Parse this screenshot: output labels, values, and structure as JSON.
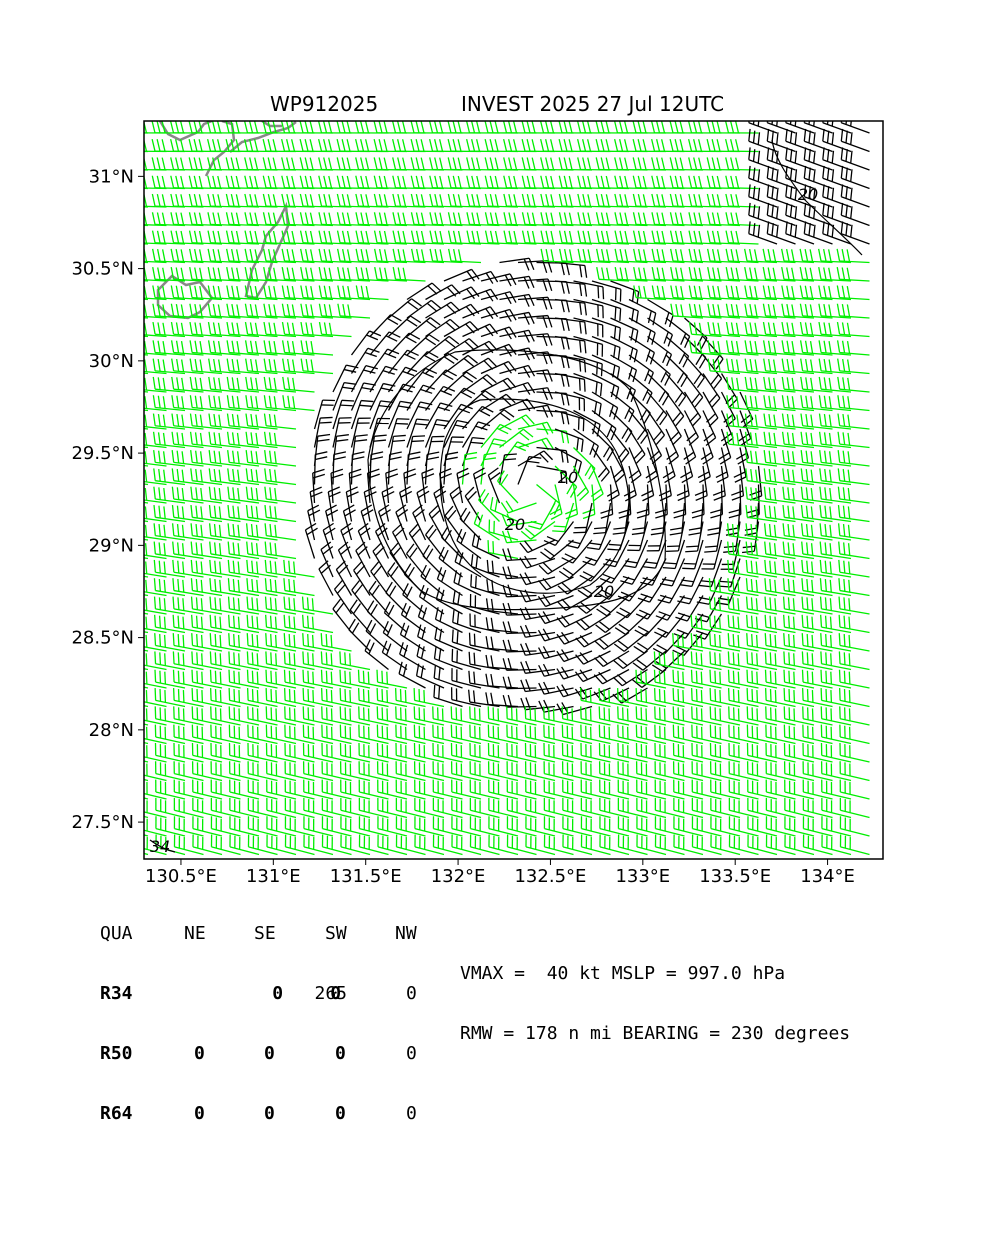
{
  "title": {
    "left": "WP912025",
    "right": "INVEST 2025 27 Jul 12UTC"
  },
  "map": {
    "lon_range": [
      130.3,
      134.3
    ],
    "lat_range": [
      27.3,
      31.3
    ],
    "lon_ticks": [
      {
        "value": 130.5,
        "label": "130.5°E"
      },
      {
        "value": 131.0,
        "label": "131°E"
      },
      {
        "value": 131.5,
        "label": "131.5°E"
      },
      {
        "value": 132.0,
        "label": "132°E"
      },
      {
        "value": 132.5,
        "label": "132.5°E"
      },
      {
        "value": 133.0,
        "label": "133°E"
      },
      {
        "value": 133.5,
        "label": "133.5°E"
      },
      {
        "value": 134.0,
        "label": "134°E"
      }
    ],
    "lat_ticks": [
      {
        "value": 31.0,
        "label": "31°N"
      },
      {
        "value": 30.5,
        "label": "30.5°N"
      },
      {
        "value": 30.0,
        "label": "30°N"
      },
      {
        "value": 29.5,
        "label": "29.5°N"
      },
      {
        "value": 29.0,
        "label": "29°N"
      },
      {
        "value": 28.5,
        "label": "28.5°N"
      },
      {
        "value": 28.0,
        "label": "28°N"
      },
      {
        "value": 27.5,
        "label": "27.5°N"
      }
    ],
    "barb_colors": {
      "field": "#00ee00",
      "core": "#000000"
    },
    "coast_color": "#888888",
    "storm_center": {
      "lon": 132.4,
      "lat": 29.3
    },
    "contour_labels": [
      "20",
      "20",
      "20",
      "20",
      "34"
    ]
  },
  "radii_table": {
    "header": [
      "QUA",
      "NE",
      "SE",
      "SW",
      "NW"
    ],
    "rows": [
      {
        "label": "R34",
        "values": [
          "0",
          "0",
          "265",
          "0"
        ]
      },
      {
        "label": "R50",
        "values": [
          "0",
          "0",
          "0",
          "0"
        ]
      },
      {
        "label": "R64",
        "values": [
          "0",
          "0",
          "0",
          "0"
        ]
      }
    ]
  },
  "info": {
    "line1": "VMAX =  40 kt MSLP = 997.0 hPa",
    "line2": "RMW = 178 n mi BEARING = 230 degrees"
  }
}
